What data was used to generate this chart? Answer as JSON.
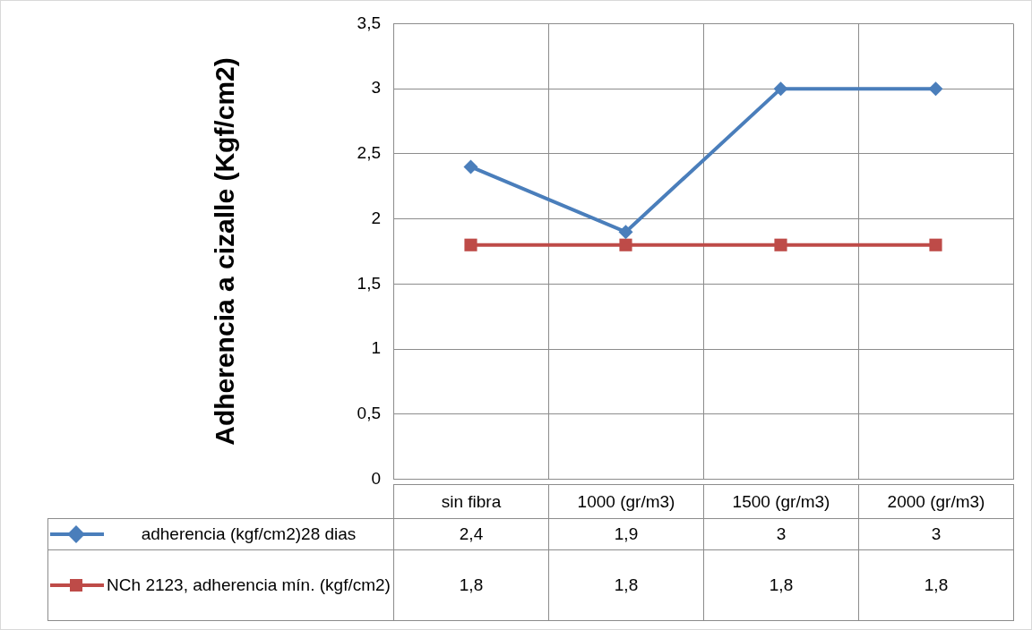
{
  "chart_data": {
    "type": "line",
    "ylabel": "Adherencia a cizalle (Kgf/cm2)",
    "categories": [
      "sin fibra",
      "1000 (gr/m3)",
      "1500 (gr/m3)",
      "2000 (gr/m3)"
    ],
    "series": [
      {
        "name": "adherencia (kgf/cm2)28 dias",
        "color": "#4a7ebb",
        "marker": "diamond",
        "values": [
          2.4,
          1.9,
          3,
          3
        ],
        "value_labels": [
          "2,4",
          "1,9",
          "3",
          "3"
        ]
      },
      {
        "name": "NCh 2123, adherencia mín. (kgf/cm2)",
        "color": "#be4b48",
        "marker": "square",
        "values": [
          1.8,
          1.8,
          1.8,
          1.8
        ],
        "value_labels": [
          "1,8",
          "1,8",
          "1,8",
          "1,8"
        ]
      }
    ],
    "ylim": [
      0,
      3.5
    ],
    "yticks": [
      0,
      {
        "value": 0.5,
        "label": "0,5"
      },
      1,
      {
        "value": 1.5,
        "label": "1,5"
      },
      2,
      {
        "value": 2.5,
        "label": "2,5"
      },
      3,
      {
        "value": 3.5,
        "label": "3,5"
      }
    ],
    "grid": true,
    "legend": "bottom",
    "line_style": "solid"
  }
}
